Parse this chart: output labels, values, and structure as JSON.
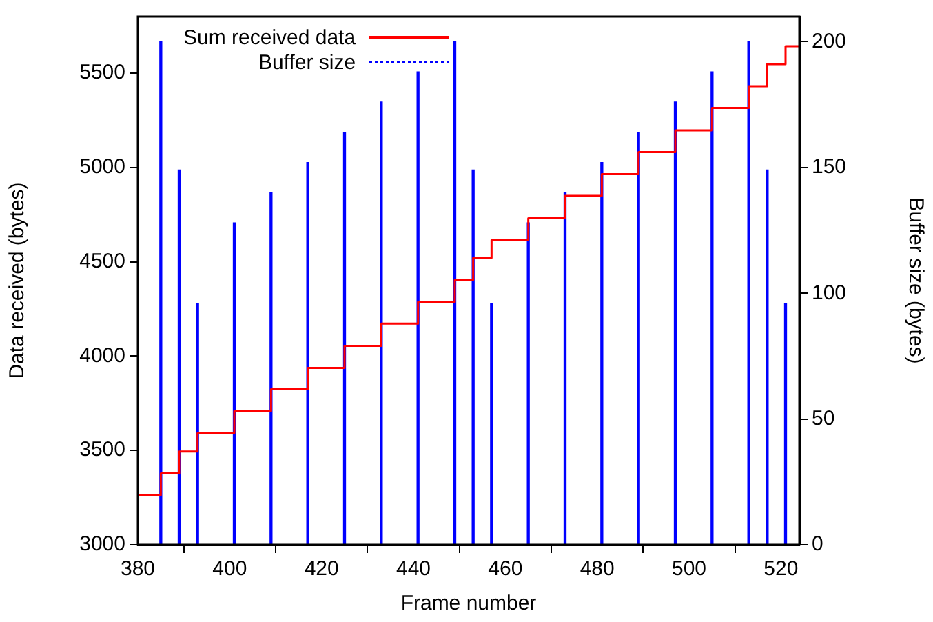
{
  "chart_data": {
    "type": "step",
    "xlabel": "Frame number",
    "ylabel": "Data received (bytes)",
    "y2label": "Buffer size (bytes)",
    "xlim": [
      380,
      524
    ],
    "xticks": [
      380,
      400,
      420,
      440,
      460,
      480,
      500,
      520
    ],
    "ylim": [
      3000,
      5800
    ],
    "yticks": [
      3000,
      3500,
      4000,
      4500,
      5000,
      5500
    ],
    "y2lim": [
      0,
      210
    ],
    "y2ticks": [
      0,
      50,
      100,
      150,
      200
    ],
    "grid": false,
    "legend": "top",
    "marker": "none",
    "series": [
      {
        "name": "Sum received data",
        "color": "#ff0000",
        "line_style": "solid",
        "x": [
          380,
          385,
          389,
          393,
          401,
          409,
          417,
          425,
          433,
          441,
          449,
          453,
          457,
          465,
          473,
          481,
          489,
          497,
          505,
          513,
          517,
          521,
          524
        ],
        "values": [
          3263,
          3378,
          3494,
          3592,
          3709,
          3824,
          3938,
          4055,
          4172,
          4287,
          4404,
          4521,
          4616,
          4731,
          4850,
          4965,
          5082,
          5197,
          5316,
          5431,
          5548,
          5643,
          5643
        ]
      },
      {
        "name": "Buffer size",
        "type": "bar",
        "axis": "y2",
        "color": "#0000ff",
        "line_style": "dotted",
        "x": [
          385,
          389,
          393,
          401,
          409,
          417,
          425,
          433,
          441,
          449,
          453,
          457,
          465,
          473,
          481,
          489,
          497,
          505,
          513,
          517,
          521
        ],
        "values": [
          200,
          149,
          96,
          128,
          140,
          152,
          164,
          176,
          188,
          200,
          149,
          96,
          128,
          140,
          152,
          164,
          176,
          188,
          200,
          149,
          96
        ]
      }
    ]
  }
}
